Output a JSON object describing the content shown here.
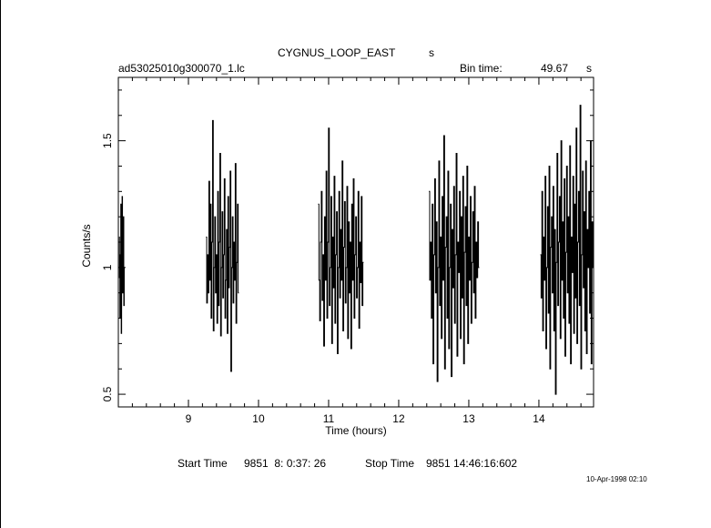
{
  "header": {
    "object": "CYGNUS_LOOP_EAST",
    "object_unit": "s",
    "file": "ad53025010g300070_1.lc",
    "bin_label": "Bin time:",
    "bin_value": "49.67",
    "bin_unit": "s"
  },
  "footer": {
    "start_label": "Start Time",
    "start_value": "9851  8: 0:37: 26",
    "stop_label": "Stop Time",
    "stop_value": "9851 14:46:16:602",
    "date": "10-Apr-1998 02:10"
  },
  "chart_data": {
    "type": "line",
    "xlabel": "Time (hours)",
    "ylabel": "Counts/s",
    "xlim": [
      8.0,
      14.78
    ],
    "ylim": [
      0.45,
      1.75
    ],
    "xticks": [
      9,
      10,
      11,
      12,
      13,
      14
    ],
    "yticks": [
      0.5,
      1,
      1.5
    ],
    "xtick_labels": [
      "9",
      "10",
      "11",
      "12",
      "13",
      "14"
    ],
    "ytick_labels": [
      "0.5",
      "1",
      "1.5"
    ],
    "grid": false,
    "line_color": "#000000",
    "segments": [
      {
        "x_start": 8.01,
        "x_end": 8.09,
        "y": [
          1.12,
          0.96,
          0.8,
          1.05,
          1.25,
          0.74,
          1.0,
          1.28,
          0.9,
          1.0,
          1.2,
          0.85,
          1.0
        ]
      },
      {
        "x_start": 9.25,
        "x_end": 9.72,
        "y": [
          1.12,
          0.86,
          1.05,
          0.9,
          1.34,
          0.95,
          1.25,
          0.8,
          1.1,
          1.58,
          0.75,
          1.0,
          1.2,
          0.9,
          1.05,
          0.78,
          1.3,
          0.85,
          1.1,
          1.45,
          0.73,
          1.0,
          1.22,
          0.88,
          1.05,
          1.35,
          0.8,
          0.95,
          1.15,
          0.74,
          1.28,
          0.92,
          1.08,
          1.38,
          0.59,
          1.0,
          1.2,
          0.86,
          1.1,
          0.95,
          1.41,
          0.78,
          1.02,
          1.25,
          0.9
        ]
      },
      {
        "x_start": 10.85,
        "x_end": 11.5,
        "y": [
          1.25,
          0.95,
          0.79,
          1.1,
          1.3,
          0.87,
          1.05,
          0.69,
          1.2,
          0.95,
          1.38,
          0.8,
          1.1,
          1.55,
          0.85,
          1.0,
          1.28,
          0.7,
          1.12,
          0.92,
          1.36,
          0.78,
          1.05,
          1.22,
          0.66,
          1.0,
          1.3,
          0.88,
          1.15,
          0.95,
          1.42,
          0.75,
          1.08,
          1.26,
          0.86,
          1.0,
          1.32,
          0.72,
          1.18,
          0.9,
          1.1,
          0.68,
          1.25,
          0.95,
          1.35,
          0.8,
          1.05,
          1.2,
          0.88,
          1.0,
          1.3,
          0.76,
          1.1,
          0.94,
          1.28,
          0.85,
          1.02
        ]
      },
      {
        "x_start": 12.43,
        "x_end": 13.15,
        "y": [
          1.3,
          0.95,
          1.1,
          0.8,
          1.25,
          0.62,
          1.05,
          1.35,
          0.9,
          1.18,
          0.55,
          1.0,
          1.42,
          0.85,
          1.12,
          0.72,
          1.28,
          0.95,
          1.52,
          0.6,
          1.08,
          1.2,
          0.8,
          1.38,
          0.68,
          1.0,
          1.25,
          0.57,
          1.15,
          0.92,
          1.32,
          0.78,
          1.05,
          1.45,
          0.65,
          1.1,
          0.98,
          1.3,
          0.72,
          1.2,
          0.88,
          1.36,
          0.62,
          1.06,
          1.24,
          0.85,
          1.4,
          0.7,
          1.12,
          0.95,
          1.28,
          0.78,
          1.02,
          1.22,
          0.9,
          1.32,
          0.8,
          1.1,
          0.96,
          1.18,
          1.0
        ]
      },
      {
        "x_start": 14.02,
        "x_end": 14.78,
        "y": [
          1.05,
          0.88,
          1.3,
          0.75,
          1.12,
          0.95,
          1.36,
          0.68,
          1.0,
          1.24,
          0.82,
          1.4,
          0.6,
          1.08,
          1.2,
          0.9,
          1.32,
          0.75,
          1.15,
          0.5,
          1.02,
          1.45,
          0.85,
          1.1,
          1.28,
          0.72,
          1.5,
          0.95,
          1.18,
          0.8,
          1.35,
          0.65,
          1.06,
          1.4,
          0.9,
          1.2,
          0.78,
          1.48,
          0.62,
          1.12,
          0.98,
          1.36,
          0.74,
          1.25,
          0.88,
          1.55,
          0.7,
          1.1,
          1.3,
          0.85,
          1.64,
          0.6,
          1.05,
          1.38,
          0.92,
          1.22,
          0.75,
          1.42,
          0.66,
          1.15,
          1.0,
          1.3,
          0.82,
          1.5,
          0.62,
          1.18,
          1.0
        ]
      }
    ]
  }
}
